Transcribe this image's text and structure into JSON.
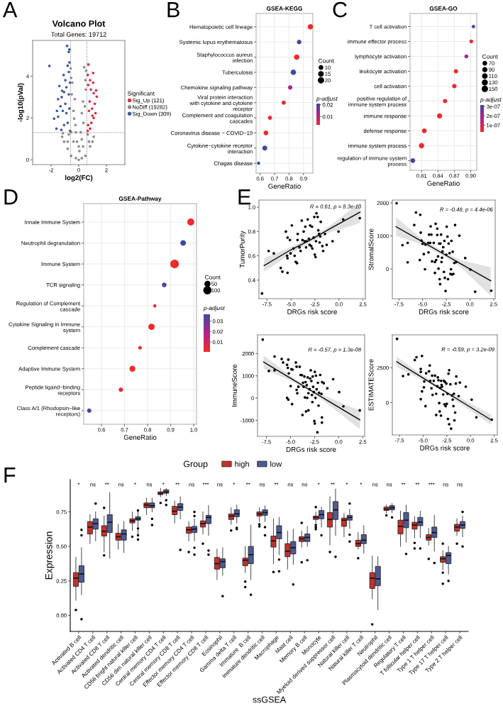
{
  "chart_data": [
    {
      "type": "scatter",
      "title": "Volcano Plot",
      "subtitle": "Total Genes: 19712",
      "xlabel": "log2(FC)",
      "ylabel": "-log10(pVal)",
      "legend_title": "Significant",
      "legend": "right",
      "marker": "circle",
      "annotations": [
        "A"
      ],
      "xlim": [
        -3.33,
        3.33
      ],
      "ylim": [
        -0.23,
        5.71
      ],
      "xticks": [
        -2,
        0,
        2
      ],
      "yticks": [
        0,
        2,
        4
      ],
      "ref_lines": [
        {
          "axis": "x",
          "value": -0.585,
          "color": "#666666",
          "line_style": "dotted"
        },
        {
          "axis": "x",
          "value": 0.585,
          "color": "#666666",
          "line_style": "dotted"
        },
        {
          "axis": "y",
          "value": 1.3,
          "color": "#666666",
          "line_style": "dotted"
        }
      ],
      "series": [
        {
          "name": "Sig_Up (121)",
          "color": "#d63041",
          "x": [
            0.7,
            1.04,
            0.65,
            0.82,
            1.04,
            0.68,
            0.87,
            1.25,
            1.3,
            1.08,
            0.79,
            1.16,
            0.96,
            1.21,
            1.08,
            0.91,
            0.68,
            0.82,
            0.65,
            0.99,
            0.74
          ],
          "values": [
            4.56,
            4.15,
            4.06,
            3.81,
            3.69,
            3.58,
            3.36,
            3.32,
            3.02,
            3.19,
            2.79,
            2.68,
            2.45,
            2.23,
            2.0,
            1.77,
            1.66,
            1.49,
            1.38,
            2.11,
            2.34
          ]
        },
        {
          "name": "NoDiff (19282)",
          "color": "#8f8a8a",
          "x": [
            0,
            -0.55,
            -0.55,
            -0.58,
            -0.51,
            -0.38,
            -0.24,
            -0.12,
            0.05,
            0.22,
            0.34,
            0.44,
            0.51,
            0.53,
            0.39,
            -1.2,
            -1.06,
            -1.15,
            0.99,
            1.08,
            0.82,
            -0.8,
            -0.55,
            0.48,
            -0.21,
            0.22,
            -0.38,
            0.31,
            0.14,
            -0.21,
            -0.72,
            0.65,
            0.74,
            -0.46,
            0.48,
            -0.29,
            0.31,
            -0.33,
            0.22,
            0,
            -0.8
          ],
          "values": [
            0,
            1.32,
            3.92,
            4.37,
            3.13,
            2.34,
            1.66,
            0.87,
            0.42,
            0.98,
            1.77,
            2.56,
            3.36,
            4.26,
            4.43,
            1.1,
            0.87,
            1.27,
            0.87,
            1.1,
            0.64,
            0.53,
            0.19,
            0.19,
            0.08,
            0.08,
            0.87,
            0.64,
            1.32,
            1.32,
            1.21,
            1.21,
            0.87,
            3.69,
            3.81,
            2.9,
            2.79,
            1.97,
            2.23,
            0.64,
            0.87
          ]
        },
        {
          "name": "Sig_Down (309)",
          "color": "#3a5ba6",
          "x": [
            -0.84,
            -0.67,
            -0.72,
            -2.12,
            -0.67,
            -0.8,
            -1.09,
            -0.72,
            -0.97,
            -1.4,
            -1.2,
            -1.49,
            -1.32,
            -1.57,
            -1.78,
            -1.49,
            -1.61,
            -1.26,
            -1.06,
            -0.89,
            -0.72,
            -0.63,
            -0.97,
            -1.15,
            -0.8,
            -0.63,
            -0.68,
            -1.23,
            -0.89,
            -1.06
          ],
          "values": [
            5.45,
            5.28,
            5.16,
            4.49,
            4.66,
            4.5,
            4.06,
            4.2,
            3.81,
            3.53,
            3.3,
            2.9,
            2.56,
            2.34,
            1.97,
            2.06,
            1.49,
            1.43,
            1.66,
            2.23,
            3.13,
            3.69,
            2.68,
            2.34,
            1.77,
            1.38,
            2.45,
            3.0,
            3.47,
            3.24
          ]
        }
      ]
    },
    {
      "type": "bubble",
      "title": "GSEA-KEGG",
      "xlabel": "GeneRatio",
      "orientation": "horizontal",
      "grid": true,
      "legend_title": "Count",
      "clabel": "p-adjust",
      "annotations": [
        "B"
      ],
      "categories": [
        "Hematopoietic cell lineage",
        "Systemic lupus erythematosus",
        "Staphylococcus aureus\ninfection",
        "Tuberculosis",
        "Chemokine signaling pathway",
        "Viral protein interaction\nwith cytokine and cytokine\nreceptor",
        "Complement and coagulation\ncascades",
        "Coronavirus disease − COVID−19",
        "Cytokine−cytokine receptor\ninteraction",
        "Chagas disease"
      ],
      "values": [
        0.948,
        0.87,
        0.853,
        0.83,
        0.808,
        0.763,
        0.668,
        0.64,
        0.632,
        0.589
      ],
      "sizes": [
        20,
        14,
        20,
        20,
        13,
        12,
        12,
        15,
        17,
        7
      ],
      "size_legend": [
        10,
        15,
        20
      ],
      "cvalues": [
        0.003,
        0.019,
        0.003,
        0.021,
        0.012,
        0.004,
        0.003,
        0.003,
        0.021,
        0.021
      ],
      "clim": [
        0.003,
        0.021
      ],
      "cticks": [
        0.01,
        0.02
      ],
      "xlim": [
        0.572,
        0.965
      ],
      "xticks": [
        0.6,
        0.7,
        0.8,
        0.9
      ]
    },
    {
      "type": "bubble",
      "title": "GSEA-GO",
      "xlabel": "GeneRatio",
      "orientation": "horizontal",
      "grid": true,
      "legend_title": "Count",
      "clabel": "p-adjust",
      "annotations": [
        "C"
      ],
      "categories": [
        "T cell activation",
        "immune effector process",
        "lymphocyte activation",
        "leukocyte activation",
        "cell activation",
        "positive regulation of\nimmune system process",
        "immune response",
        "defense response",
        "immune system process",
        "regulation of immune system\nprocess"
      ],
      "values": [
        0.905,
        0.901,
        0.892,
        0.873,
        0.87,
        0.853,
        0.843,
        0.815,
        0.81,
        0.794
      ],
      "sizes": [
        60,
        75,
        80,
        95,
        100,
        95,
        140,
        115,
        150,
        115
      ],
      "size_legend": [
        70,
        90,
        110,
        130,
        150
      ],
      "cvalues": [
        3.1e-07,
        3e-08,
        1.9e-07,
        3e-08,
        3e-08,
        3e-08,
        3e-08,
        3e-08,
        3e-08,
        3.1e-07
      ],
      "clim": [
        2.8e-08,
        3.16e-07
      ],
      "cticks": [
        {
          "value": 1e-07,
          "label": "1e-07"
        },
        {
          "value": 2e-07,
          "label": "2e-07"
        },
        {
          "value": 3e-07,
          "label": "3e-07"
        }
      ],
      "xlim": [
        0.789,
        0.911
      ],
      "xticks": [
        0.81,
        0.84,
        0.87,
        {
          "value": 0.9,
          "label": "0.90"
        }
      ]
    },
    {
      "type": "bubble",
      "title": "GSEA-Pathway",
      "xlabel": "GeneRatio",
      "orientation": "horizontal",
      "grid": true,
      "legend_title": "Count",
      "clabel": "p-adjust",
      "annotations": [
        "D"
      ],
      "categories": [
        "Innate Immune System",
        "Neutrophil degranulation",
        "Immune System",
        "TCR signaling",
        "Regulation of Complement\ncascade",
        "Cytokine Signaling in Immune\nsystem",
        "Complement cascade",
        "Adaptive Immune System",
        "Peptide ligand−binding\nreceptors",
        "Class A/1 (Rhodopsin−like\nreceptors)"
      ],
      "values": [
        0.987,
        0.954,
        0.917,
        0.872,
        0.831,
        0.817,
        0.767,
        0.734,
        0.684,
        0.547
      ],
      "sizes": [
        90,
        60,
        140,
        40,
        20,
        75,
        25,
        65,
        35,
        35
      ],
      "size_legend": [
        50,
        100
      ],
      "cvalues": [
        0.001,
        0.036,
        0.001,
        0.035,
        0.001,
        0.001,
        0.001,
        0.001,
        0.001,
        0.036
      ],
      "clim": [
        0.0005,
        0.0365
      ],
      "cticks": [
        0.01,
        0.02,
        0.03
      ],
      "xlim": [
        0.523,
        1.012
      ],
      "xticks": [
        0.6,
        0.7,
        0.8,
        0.9,
        {
          "value": 1.0,
          "label": "1.0"
        }
      ]
    },
    {
      "type": "scatter",
      "xlabel": "DRGs risk score",
      "ylabel": "TumorPurity",
      "marker": "circle",
      "annotations": [
        "E",
        "R = 0.61, p = 8.3e-10"
      ],
      "xlim": [
        -8.34,
        2.75
      ],
      "ylim": [
        0.247,
        1.059
      ],
      "xticks": [
        {
          "value": -7.5,
          "label": "-7.5"
        },
        {
          "value": -5,
          "label": "-5.0"
        },
        {
          "value": -2.5,
          "label": "-2.5"
        },
        {
          "value": 0,
          "label": "0.0"
        },
        {
          "value": 2.5,
          "label": "2.5"
        }
      ],
      "yticks": [
        0.4,
        0.6,
        0.8,
        {
          "value": 1,
          "label": "1.0"
        }
      ],
      "series": [
        {
          "color": "#000000",
          "x": [
            -8.02,
            -7.33,
            -6.79,
            -6.07,
            -5.9,
            -5.36,
            -5.53,
            -5.36,
            -5.11,
            -4.91,
            -5.41,
            -5.36,
            -5.04,
            -4.74,
            -4.62,
            -4.5,
            -4.37,
            -4.32,
            -4.3,
            -4.12,
            -4.0,
            -3.88,
            -3.8,
            -3.68,
            -3.58,
            -3.51,
            -3.43,
            -3.26,
            -3.38,
            -3.14,
            -3.06,
            -3.01,
            -2.89,
            -2.81,
            -2.77,
            -2.64,
            -2.57,
            -2.52,
            -2.44,
            -2.4,
            -2.35,
            -2.22,
            -2.15,
            -2.07,
            -2.02,
            -1.95,
            -1.9,
            -1.73,
            -1.65,
            -1.46,
            -1.28,
            -0.67,
            -0.05,
            0.44,
            2.17
          ],
          "values": [
            0.29,
            0.64,
            0.62,
            0.5,
            0.47,
            0.46,
            0.8,
            0.75,
            0.73,
            0.85,
            0.6,
            0.58,
            0.62,
            0.66,
            0.6,
            0.55,
            0.54,
            0.73,
            0.78,
            0.67,
            0.64,
            0.89,
            0.73,
            0.8,
            0.72,
            0.84,
            0.67,
            0.9,
            0.72,
            0.74,
            0.69,
            0.85,
            0.68,
            0.84,
            0.66,
            0.75,
            0.92,
            0.61,
            0.59,
            0.72,
            0.95,
            0.92,
            0.81,
            0.78,
            0.71,
            0.76,
            0.88,
            0.68,
            0.64,
            0.78,
            0.69,
            0.72,
            0.8,
            0.9,
            0.91
          ]
        },
        {
          "type": "line",
          "marker": "none",
          "color": "#000000",
          "x": [
            -7.8,
            -5,
            -3,
            -1,
            2.2
          ],
          "values": [
            0.52,
            0.65,
            0.73,
            0.82,
            0.96
          ],
          "lower": [
            0.47,
            0.615,
            0.71,
            0.79,
            0.87
          ],
          "upper": [
            0.58,
            0.675,
            0.75,
            0.845,
            1.04
          ]
        }
      ]
    },
    {
      "type": "scatter",
      "xlabel": "DRGs risk score",
      "ylabel": "StromalScore",
      "marker": "circle",
      "annotations": [
        "R = -0.48, p = 4.4e-06"
      ],
      "xlim": [
        -8.2,
        2.67
      ],
      "ylim": [
        -902,
        2087
      ],
      "xticks": [
        {
          "value": -7.5,
          "label": "-7.5"
        },
        {
          "value": -5,
          "label": "-5.0"
        },
        {
          "value": -2.5,
          "label": "-2.5"
        },
        {
          "value": 0,
          "label": "0.0"
        },
        {
          "value": 2.5,
          "label": "2.5"
        }
      ],
      "yticks": [
        0,
        1000,
        2000
      ],
      "series": [
        {
          "color": "#000000",
          "x": [
            -7.75,
            -7.13,
            -6.58,
            -6.58,
            -5.88,
            -5.7,
            -5.25,
            -5.2,
            -5.3,
            -5.12,
            -5.0,
            -4.87,
            -4.75,
            -4.7,
            -4.38,
            -4.32,
            -4.4,
            -4.2,
            -4.15,
            -4.07,
            -4.0,
            -3.82,
            -3.7,
            -3.7,
            -3.62,
            -3.57,
            -3.45,
            -3.45,
            -3.37,
            -3.32,
            -3.25,
            -3.2,
            -3.15,
            -3.12,
            -3.05,
            -3.0,
            -2.95,
            -2.9,
            -2.82,
            -2.75,
            -2.7,
            -2.65,
            -2.57,
            -2.5,
            -2.45,
            -2.37,
            -2.32,
            -2.25,
            -2.15,
            -2.07,
            -2.0,
            -1.95,
            -1.9,
            -1.82,
            -1.75,
            -1.65,
            -1.57,
            -1.45,
            -1.12,
            -0.5,
            0.05,
            0.55,
            2.25
          ],
          "values": [
            1990,
            720,
            790,
            200,
            1330,
            1710,
            1640,
            1100,
            270,
            860,
            760,
            450,
            -10,
            740,
            500,
            1040,
            790,
            790,
            1290,
            1040,
            230,
            790,
            -120,
            210,
            1370,
            270,
            1220,
            1030,
            380,
            10,
            770,
            -310,
            -460,
            770,
            1040,
            210,
            340,
            530,
            660,
            -90,
            850,
            -270,
            -670,
            430,
            1280,
            980,
            -310,
            770,
            480,
            -150,
            -10,
            850,
            -170,
            520,
            -150,
            180,
            1330,
            210,
            1010,
            330,
            -20,
            -690,
            -660
          ]
        },
        {
          "type": "line",
          "marker": "none",
          "color": "#000000",
          "x": [
            -7.8,
            -5,
            -3,
            -1,
            2.2
          ],
          "values": [
            1280,
            820,
            490,
            160,
            -360
          ],
          "lower": [
            1000,
            740,
            420,
            60,
            -815
          ],
          "upper": [
            1560,
            900,
            560,
            270,
            50
          ]
        }
      ]
    },
    {
      "type": "scatter",
      "xlabel": "DRGs risk score",
      "ylabel": "ImmuneScore",
      "marker": "circle",
      "annotations": [
        "R = -0.57, p = 1.3e-08"
      ],
      "xlim": [
        -8.43,
        2.7
      ],
      "ylim": [
        -1718,
        2842
      ],
      "xticks": [
        {
          "value": -7.5,
          "label": "-7.5"
        },
        {
          "value": -5,
          "label": "-5.0"
        },
        {
          "value": -2.5,
          "label": "-2.5"
        },
        {
          "value": 0,
          "label": "0.0"
        },
        {
          "value": 2.5,
          "label": "2.5"
        }
      ],
      "yticks": [
        -1000,
        0,
        1000,
        2000
      ],
      "series": [
        {
          "color": "#000000",
          "x": [
            -7.89,
            -7.25,
            -6.66,
            -6.66,
            -5.92,
            -5.77,
            -5.36,
            -5.28,
            -5.23,
            -5.18,
            -5.36,
            -5.23,
            -4.99,
            -4.91,
            -4.79,
            -4.84,
            -4.45,
            -4.37,
            -4.37,
            -4.3,
            -4.18,
            -4.05,
            -3.96,
            -3.81,
            -3.76,
            -3.71,
            -3.64,
            -3.56,
            -3.51,
            -3.44,
            -3.39,
            -3.32,
            -3.27,
            -3.22,
            -3.14,
            -3.14,
            -3.02,
            -2.97,
            -2.9,
            -2.83,
            -2.78,
            -2.73,
            -2.7,
            -2.65,
            -2.58,
            -2.53,
            -2.48,
            -2.48,
            -2.41,
            -2.36,
            -2.29,
            -2.21,
            -2.16,
            -2.09,
            -2.04,
            -1.92,
            -1.79,
            -1.74,
            -1.74,
            -1.72,
            -1.55,
            -1.18,
            -0.57,
            0.05,
            0.49,
            2.19
          ],
          "values": [
            2630,
            1220,
            1250,
            1870,
            1760,
            1600,
            1500,
            1360,
            1730,
            1110,
            10,
            -70,
            540,
            1300,
            1280,
            -270,
            1600,
            1410,
            370,
            220,
            510,
            1410,
            1040,
            1030,
            -760,
            690,
            510,
            970,
            30,
            720,
            -600,
            580,
            10,
            930,
            -550,
            220,
            400,
            880,
            1250,
            770,
            140,
            -180,
            970,
            510,
            270,
            -1030,
            -1140,
            1180,
            10,
            1010,
            400,
            -1540,
            690,
            -340,
            240,
            1040,
            190,
            -870,
            -1100,
            720,
            670,
            440,
            850,
            270,
            -370,
            -550
          ]
        },
        {
          "type": "line",
          "marker": "none",
          "color": "#000000",
          "x": [
            -7.8,
            -5,
            -3,
            -1,
            2.2
          ],
          "values": [
            1620,
            890,
            370,
            -150,
            -980
          ],
          "lower": [
            1330,
            780,
            300,
            -310,
            -1400
          ],
          "upper": [
            1910,
            1010,
            450,
            20,
            -560
          ]
        }
      ]
    },
    {
      "type": "scatter",
      "xlabel": "DRGs risk score",
      "ylabel": "ESTIMATEScore",
      "marker": "circle",
      "annotations": [
        "R = -0.59, p = 3.2e-09"
      ],
      "xlim": [
        -8.25,
        2.83
      ],
      "ylim": [
        -2314,
        4865
      ],
      "xticks": [
        {
          "value": -7.5,
          "label": "-7.5"
        },
        {
          "value": -5,
          "label": "-5.0"
        },
        {
          "value": -2.5,
          "label": "-2.5"
        },
        {
          "value": 0,
          "label": "0.0"
        },
        {
          "value": 2.5,
          "label": "2.5"
        }
      ],
      "yticks": [
        0,
        2500
      ],
      "series": [
        {
          "color": "#000000",
          "x": [
            -7.75,
            -7.12,
            -6.55,
            -5.88,
            -5.7,
            -5.12,
            -5.25,
            -5.25,
            -5.12,
            -5.25,
            -4.92,
            -4.75,
            -4.88,
            -4.68,
            -4.38,
            -4.3,
            -4.25,
            -4.12,
            -4.05,
            -4.0,
            -3.88,
            -3.75,
            -3.62,
            -3.62,
            -3.5,
            -3.45,
            -3.38,
            -3.3,
            -3.25,
            -3.2,
            -3.12,
            -3.1,
            -3.05,
            -3.0,
            -2.88,
            -2.8,
            -2.75,
            -2.7,
            -2.62,
            -2.55,
            -2.5,
            -2.42,
            -2.38,
            -2.32,
            -2.25,
            -2.25,
            -2.12,
            -2.05,
            -1.95,
            -1.88,
            -1.8,
            -1.75,
            -1.7,
            -1.62,
            -1.55,
            -1.5,
            -1.25,
            -1.12,
            -0.5,
            0.12,
            0.62,
            2.25
          ],
          "values": [
            4580,
            1910,
            2030,
            3060,
            3260,
            3350,
            2420,
            2210,
            810,
            250,
            1100,
            -250,
            1520,
            2110,
            2250,
            2670,
            1570,
            1030,
            1940,
            560,
            1570,
            1940,
            -880,
            640,
            1180,
            1820,
            1610,
            -30,
            -630,
            1060,
            -930,
            1570,
            1270,
            1150,
            590,
            1570,
            -120,
            1490,
            -250,
            1370,
            -80,
            640,
            -1170,
            2080,
            2330,
            -1550,
            1320,
            -1860,
            520,
            220,
            -250,
            640,
            -1270,
            -710,
            1370,
            1880,
            470,
            1440,
            1150,
            220,
            -1050,
            -1220
          ]
        },
        {
          "type": "line",
          "marker": "none",
          "color": "#000000",
          "x": [
            -7.8,
            -5,
            -3,
            -1,
            2.2
          ],
          "values": [
            2940,
            1770,
            930,
            90,
            -1250
          ],
          "lower": [
            2560,
            1600,
            840,
            -130,
            -1600
          ],
          "upper": [
            3300,
            1950,
            1030,
            320,
            -880
          ]
        }
      ]
    },
    {
      "type": "box",
      "xlabel": "ssGSEA",
      "ylabel": "Expression",
      "legend": "top",
      "legend_title": "Group",
      "annotations": [
        "F",
        "*",
        "ns",
        "**",
        "ns",
        "*",
        "ns",
        "*",
        "**",
        "ns",
        "***",
        "ns",
        "*",
        "**",
        "ns",
        "**",
        "ns",
        "ns",
        "*",
        "**",
        "*",
        "*",
        "ns",
        "ns",
        "**",
        "**",
        "***",
        "ns",
        "ns"
      ],
      "ylim": [
        -0.116,
        0.984
      ],
      "yticks": [
        {
          "value": 0,
          "label": "0.00"
        },
        {
          "value": 0.25,
          "label": "0.25"
        },
        {
          "value": 0.5,
          "label": "0.50"
        },
        {
          "value": 0.75,
          "label": "0.75"
        }
      ],
      "categories": [
        "Activated B cell",
        "Activated CD4 T cell",
        "Activated CD8 T cell",
        "Activated dendritic cell",
        "CD56 bright natural killer cell",
        "CD56 dim natural killer cell",
        "Central memory CD4 T cell",
        "Central memory CD8 T cell",
        "Effector memory CD4 T cell",
        "Effector memory CD8 T cell",
        "Eosinophil",
        "Gamma delta T cell",
        "Immature  B cell",
        "Immature dendritic cell",
        "Macrophage",
        "Mast cell",
        "Memory B cell",
        "Monocyte",
        "Myeloid derived suppressor cell",
        "Natural killer cell",
        "Natural killer T cell",
        "Neutrophil",
        "Plasmacytoid dendritic cell",
        "Regulatory T cell",
        "T follicular helper cell",
        "Type 1 T helper cell",
        "Type 17 T helper cell",
        "Type 2 T helper cell"
      ],
      "series": [
        {
          "name": "high",
          "color": "#c4302b",
          "boxes": [
            {
              "low": 0.11,
              "q1": 0.21,
              "median": 0.27,
              "q3": 0.31,
              "high": 0.42,
              "outliers": [
                0.04
              ]
            },
            {
              "low": 0.52,
              "q1": 0.59,
              "median": 0.64,
              "q3": 0.68,
              "high": 0.73
            },
            {
              "low": 0.46,
              "q1": 0.575,
              "median": 0.61,
              "q3": 0.65,
              "high": 0.72,
              "outliers": [
                0.78,
                0.435
              ]
            },
            {
              "low": 0.48,
              "q1": 0.545,
              "median": 0.57,
              "q3": 0.595,
              "high": 0.66
            },
            {
              "low": 0.615,
              "q1": 0.67,
              "median": 0.685,
              "q3": 0.7,
              "high": 0.75,
              "outliers": [
                0.57
              ]
            },
            {
              "low": 0.73,
              "q1": 0.78,
              "median": 0.8,
              "q3": 0.815,
              "high": 0.85
            },
            {
              "low": 0.86,
              "q1": 0.875,
              "median": 0.885,
              "q3": 0.895,
              "high": 0.92,
              "outliers": [
                0.815
              ]
            },
            {
              "low": 0.67,
              "q1": 0.73,
              "median": 0.755,
              "q3": 0.79,
              "high": 0.83
            },
            {
              "low": 0.54,
              "q1": 0.595,
              "median": 0.62,
              "q3": 0.64,
              "high": 0.68,
              "outliers": [
                0.46
              ]
            },
            {
              "low": 0.59,
              "q1": 0.64,
              "median": 0.665,
              "q3": 0.685,
              "high": 0.75,
              "outliers": [
                0.52
              ]
            },
            {
              "low": 0.26,
              "q1": 0.335,
              "median": 0.375,
              "q3": 0.42,
              "high": 0.48
            },
            {
              "low": 0.66,
              "q1": 0.695,
              "median": 0.72,
              "q3": 0.735,
              "high": 0.78,
              "outliers": [
                0.615
              ]
            },
            {
              "low": 0.31,
              "q1": 0.36,
              "median": 0.4,
              "q3": 0.415,
              "high": 0.5,
              "outliers": [
                0.245,
                0.205
              ]
            },
            {
              "low": 0.68,
              "q1": 0.72,
              "median": 0.735,
              "q3": 0.75,
              "high": 0.78,
              "outliers": [
                0.66,
                0.645
              ]
            },
            {
              "low": 0.375,
              "q1": 0.495,
              "median": 0.54,
              "q3": 0.575,
              "high": 0.7,
              "outliers": [
                0.315
              ]
            },
            {
              "low": 0.335,
              "q1": 0.425,
              "median": 0.465,
              "q3": 0.52,
              "high": 0.61
            },
            {
              "low": 0.495,
              "q1": 0.535,
              "median": 0.555,
              "q3": 0.57,
              "high": 0.61,
              "outliers": [
                0.67,
                0.385
              ]
            },
            {
              "low": 0.67,
              "q1": 0.695,
              "median": 0.71,
              "q3": 0.72,
              "high": 0.75,
              "outliers": [
                0.785,
                0.655,
                0.64,
                0.625
              ]
            },
            {
              "low": 0.51,
              "q1": 0.64,
              "median": 0.695,
              "q3": 0.745,
              "high": 0.86,
              "outliers": [
                0.46
              ]
            },
            {
              "low": 0.57,
              "q1": 0.645,
              "median": 0.69,
              "q3": 0.705,
              "high": 0.74
            },
            {
              "low": 0.48,
              "q1": 0.5,
              "median": 0.52,
              "q3": 0.545,
              "high": 0.6,
              "outliers": [
                0.415
              ]
            },
            {
              "low": 0.12,
              "q1": 0.195,
              "median": 0.27,
              "q3": 0.31,
              "high": 0.43,
              "outliers": [
                -0.065
              ]
            },
            {
              "low": 0.74,
              "q1": 0.76,
              "median": 0.77,
              "q3": 0.785,
              "high": 0.8,
              "outliers": [
                0.725
              ]
            },
            {
              "low": 0.5,
              "q1": 0.59,
              "median": 0.645,
              "q3": 0.69,
              "high": 0.755
            },
            {
              "low": 0.56,
              "q1": 0.625,
              "median": 0.655,
              "q3": 0.675,
              "high": 0.715,
              "outliers": [
                0.525,
                0.485
              ]
            },
            {
              "low": 0.51,
              "q1": 0.545,
              "median": 0.565,
              "q3": 0.585,
              "high": 0.63,
              "outliers": [
                0.41
              ]
            },
            {
              "low": 0.33,
              "q1": 0.385,
              "median": 0.41,
              "q3": 0.425,
              "high": 0.47,
              "outliers": [
                0.52,
                0.31,
                0.23
              ]
            },
            {
              "low": 0.58,
              "q1": 0.61,
              "median": 0.64,
              "q3": 0.66,
              "high": 0.7,
              "outliers": [
                0.52
              ]
            }
          ]
        },
        {
          "name": "low",
          "color": "#4e5a93",
          "boxes": [
            {
              "low": 0.15,
              "q1": 0.24,
              "median": 0.3,
              "q3": 0.36,
              "high": 0.49,
              "outliers": [
                -0.027,
                0.62,
                0.58
              ]
            },
            {
              "low": 0.54,
              "q1": 0.625,
              "median": 0.665,
              "q3": 0.7,
              "high": 0.75,
              "outliers": [
                0.81
              ]
            },
            {
              "low": 0.415,
              "q1": 0.6,
              "median": 0.675,
              "q3": 0.73,
              "high": 0.89
            },
            {
              "low": 0.455,
              "q1": 0.545,
              "median": 0.59,
              "q3": 0.62,
              "high": 0.68
            },
            {
              "low": 0.59,
              "q1": 0.69,
              "median": 0.7,
              "q3": 0.715,
              "high": 0.75,
              "outliers": [
                0.76,
                0.63,
                0.58,
                0.55
              ]
            },
            {
              "low": 0.75,
              "q1": 0.78,
              "median": 0.795,
              "q3": 0.815,
              "high": 0.85,
              "outliers": [
                0.7,
                0.655
              ]
            },
            {
              "low": 0.87,
              "q1": 0.885,
              "median": 0.895,
              "q3": 0.91,
              "high": 0.92,
              "outliers": [
                0.835,
                0.8
              ]
            },
            {
              "low": 0.7,
              "q1": 0.76,
              "median": 0.785,
              "q3": 0.81,
              "high": 0.86,
              "outliers": [
                0.475
              ]
            },
            {
              "low": 0.54,
              "q1": 0.6,
              "median": 0.625,
              "q3": 0.645,
              "high": 0.7,
              "outliers": [
                0.75,
                0.72,
                0.49,
                0.44
              ]
            },
            {
              "low": 0.58,
              "q1": 0.665,
              "median": 0.71,
              "q3": 0.725,
              "high": 0.795,
              "outliers": [
                0.47,
                0.44
              ]
            },
            {
              "low": 0.29,
              "q1": 0.345,
              "median": 0.39,
              "q3": 0.41,
              "high": 0.49,
              "outliers": [
                0.14
              ]
            },
            {
              "low": 0.67,
              "q1": 0.715,
              "median": 0.735,
              "q3": 0.765,
              "high": 0.8,
              "outliers": [
                0.635,
                0.625
              ]
            },
            {
              "low": 0.26,
              "q1": 0.375,
              "median": 0.44,
              "q3": 0.5,
              "high": 0.655,
              "outliers": [
                0.15
              ]
            },
            {
              "low": 0.68,
              "q1": 0.725,
              "median": 0.745,
              "q3": 0.765,
              "high": 0.795,
              "outliers": [
                0.64,
                0.58
              ]
            },
            {
              "low": 0.44,
              "q1": 0.555,
              "median": 0.6,
              "q3": 0.65,
              "high": 0.71,
              "outliers": [
                0.405,
                0.32
              ]
            },
            {
              "low": 0.37,
              "q1": 0.445,
              "median": 0.49,
              "q3": 0.535,
              "high": 0.625,
              "outliers": [
                0.225
              ]
            },
            {
              "low": 0.5,
              "q1": 0.535,
              "median": 0.565,
              "q3": 0.59,
              "high": 0.645,
              "outliers": [
                0.4
              ]
            },
            {
              "low": 0.64,
              "q1": 0.7,
              "median": 0.73,
              "q3": 0.76,
              "high": 0.785,
              "outliers": [
                0.58
              ]
            },
            {
              "low": 0.58,
              "q1": 0.695,
              "median": 0.765,
              "q3": 0.825,
              "high": 0.915,
              "outliers": [
                0.425
              ]
            },
            {
              "low": 0.63,
              "q1": 0.69,
              "median": 0.71,
              "q3": 0.725,
              "high": 0.77,
              "outliers": [
                0.81,
                0.585,
                0.535
              ]
            },
            {
              "low": 0.45,
              "q1": 0.52,
              "median": 0.545,
              "q3": 0.585,
              "high": 0.65
            },
            {
              "low": 0.04,
              "q1": 0.215,
              "median": 0.265,
              "q3": 0.355,
              "high": 0.425
            },
            {
              "low": 0.745,
              "q1": 0.765,
              "median": 0.78,
              "q3": 0.795,
              "high": 0.81,
              "outliers": [
                0.71
              ]
            },
            {
              "low": 0.53,
              "q1": 0.635,
              "median": 0.69,
              "q3": 0.745,
              "high": 0.8,
              "outliers": [
                0.445
              ]
            },
            {
              "low": 0.565,
              "q1": 0.65,
              "median": 0.675,
              "q3": 0.71,
              "high": 0.755,
              "outliers": [
                0.485
              ]
            },
            {
              "low": 0.465,
              "q1": 0.565,
              "median": 0.6,
              "q3": 0.64,
              "high": 0.725,
              "outliers": [
                0.38
              ]
            },
            {
              "low": 0.3,
              "q1": 0.375,
              "median": 0.435,
              "q3": 0.455,
              "high": 0.5,
              "outliers": [
                0.25
              ]
            },
            {
              "low": 0.57,
              "q1": 0.63,
              "median": 0.655,
              "q3": 0.68,
              "high": 0.72,
              "outliers": [
                0.75,
                0.5
              ]
            }
          ]
        }
      ]
    }
  ]
}
